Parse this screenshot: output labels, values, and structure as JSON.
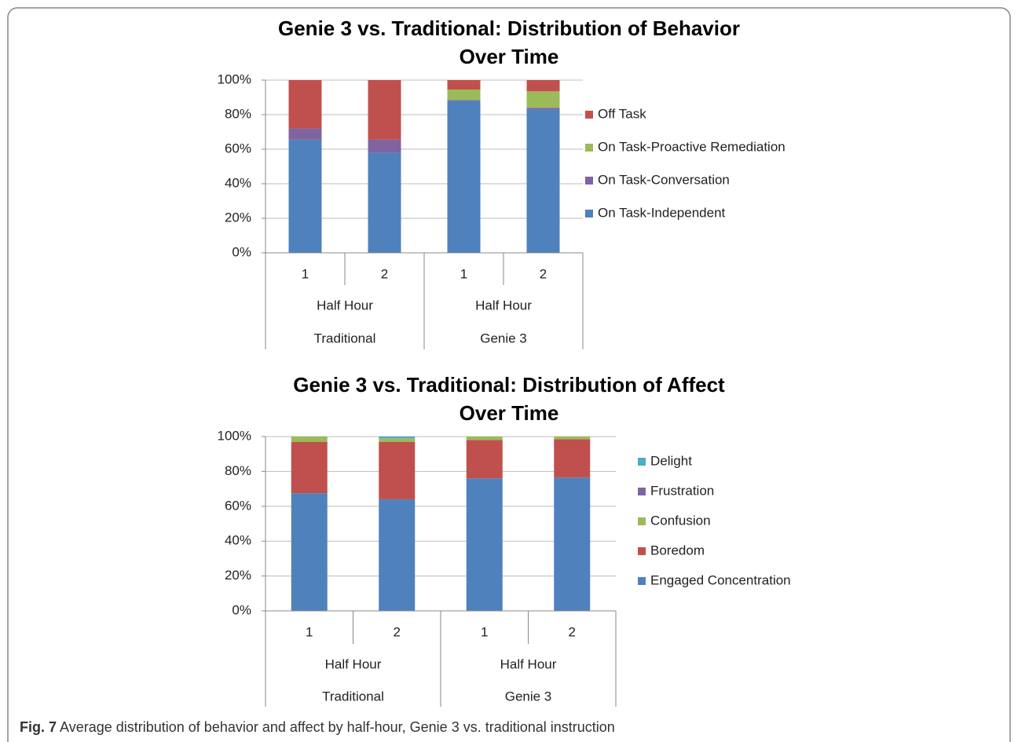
{
  "chart_data": [
    {
      "type": "stacked_bar",
      "title": [
        "Genie 3 vs. Traditional: Distribution of Behavior",
        "Over Time"
      ],
      "categories": [
        "1",
        "2",
        "1",
        "2"
      ],
      "groups": [
        {
          "labels": [
            "Half Hour",
            "Traditional"
          ]
        },
        {
          "labels": [
            "Half Hour",
            "Genie 3"
          ]
        }
      ],
      "series": [
        {
          "name": "On Task-Independent",
          "color": "#4f81bd",
          "values": [
            65.5,
            58,
            88,
            83
          ]
        },
        {
          "name": "On Task-Conversation",
          "color": "#8064a2",
          "values": [
            6.5,
            7.5,
            0.5,
            1
          ]
        },
        {
          "name": "On Task-Proactive Remediation",
          "color": "#9bbb59",
          "values": [
            0,
            0,
            6,
            9.5
          ]
        },
        {
          "name": "Off Task",
          "color": "#c0504d",
          "values": [
            28,
            34.5,
            5.5,
            6.5
          ]
        }
      ],
      "ylim": [
        0,
        100
      ],
      "yticks": [
        {
          "value": 0,
          "label": "0%"
        },
        {
          "value": 20,
          "label": "20%"
        },
        {
          "value": 40,
          "label": "40%"
        },
        {
          "value": 60,
          "label": "60%"
        },
        {
          "value": 80,
          "label": "80%"
        },
        {
          "value": 100,
          "label": "100%"
        }
      ],
      "grid": true,
      "legend": "right"
    },
    {
      "type": "stacked_bar",
      "title": [
        "Genie 3 vs. Traditional:  Distribution of Affect",
        "Over Time"
      ],
      "categories": [
        "1",
        "2",
        "1",
        "2"
      ],
      "groups": [
        {
          "labels": [
            "Half Hour",
            "Traditional"
          ]
        },
        {
          "labels": [
            "Half Hour",
            "Genie 3"
          ]
        }
      ],
      "series": [
        {
          "name": "Engaged Concentration",
          "color": "#4f81bd",
          "values": [
            67.5,
            64,
            76,
            76.5
          ]
        },
        {
          "name": "Boredom",
          "color": "#c0504d",
          "values": [
            29.5,
            33,
            22,
            22
          ]
        },
        {
          "name": "Confusion",
          "color": "#9bbb59",
          "values": [
            3,
            2,
            2,
            1.5
          ]
        },
        {
          "name": "Frustration",
          "color": "#8064a2",
          "values": [
            0,
            0,
            0,
            0
          ]
        },
        {
          "name": "Delight",
          "color": "#4bacc6",
          "values": [
            0,
            1,
            0,
            0
          ]
        }
      ],
      "ylim": [
        0,
        100
      ],
      "yticks": [
        {
          "value": 0,
          "label": "0%"
        },
        {
          "value": 20,
          "label": "20%"
        },
        {
          "value": 40,
          "label": "40%"
        },
        {
          "value": 60,
          "label": "60%"
        },
        {
          "value": 80,
          "label": "80%"
        },
        {
          "value": 100,
          "label": "100%"
        }
      ],
      "grid": true,
      "legend": "right"
    }
  ],
  "caption": {
    "label": "Fig. 7",
    "text": "Average distribution of behavior and affect by half-hour, Genie 3 vs. traditional instruction"
  }
}
